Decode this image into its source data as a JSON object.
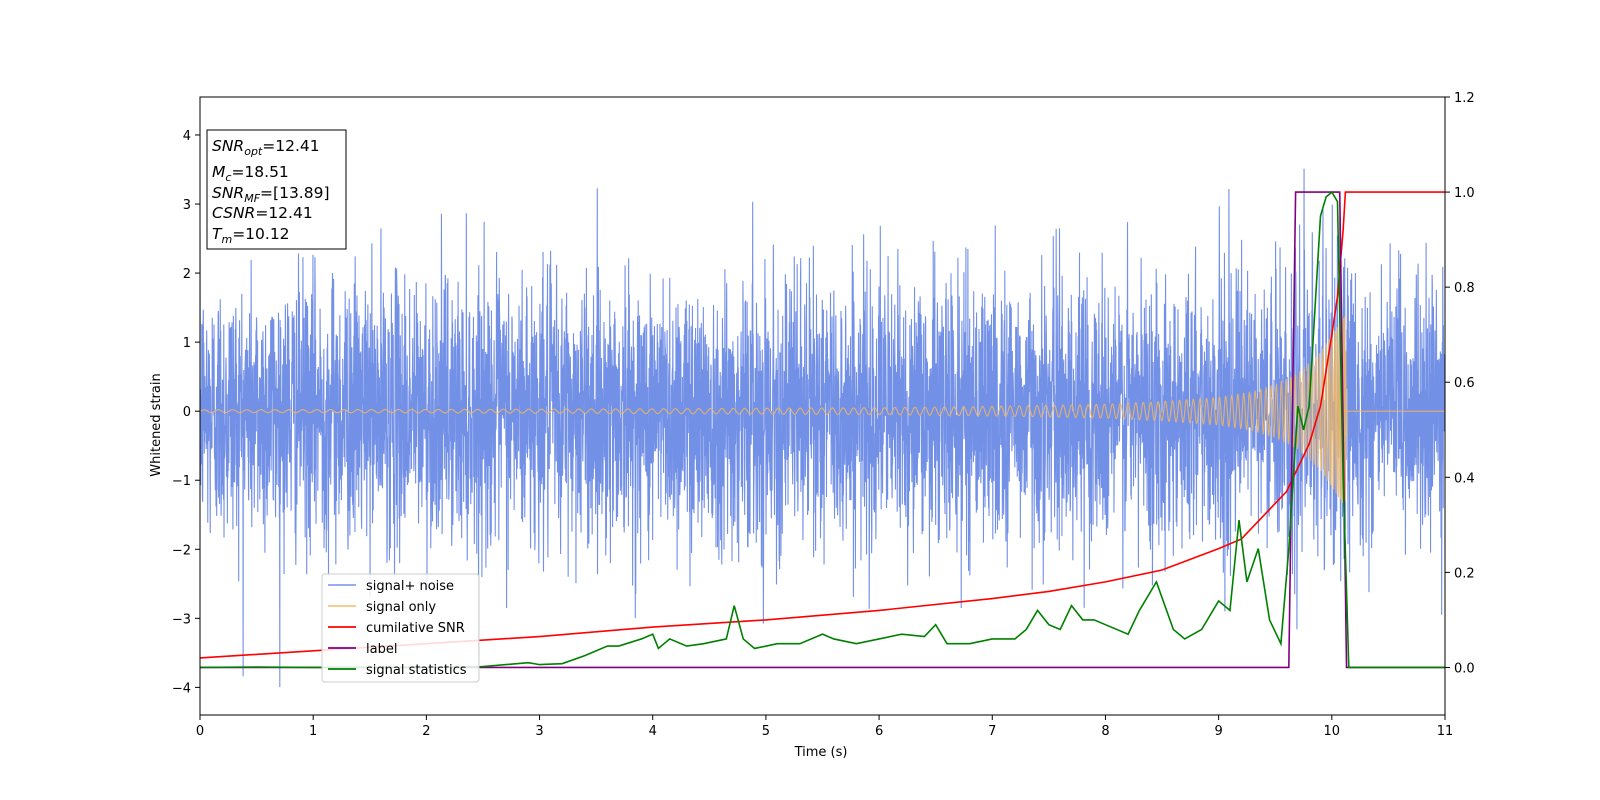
{
  "chart_data": {
    "type": "line",
    "xlabel": "Time (s)",
    "ylabel": "Whitened strain",
    "xlim": [
      0,
      11
    ],
    "ylim_left": [
      -4.4,
      4.55
    ],
    "ylim_right": [
      -0.1,
      1.2
    ],
    "x_ticks": [
      0,
      1,
      2,
      3,
      4,
      5,
      6,
      7,
      8,
      9,
      10,
      11
    ],
    "y_ticks_left": [
      -4,
      -3,
      -2,
      -1,
      0,
      1,
      2,
      3,
      4
    ],
    "y_ticks_right": [
      0.0,
      0.2,
      0.4,
      0.6,
      0.8,
      1.0,
      1.2
    ],
    "grid": false,
    "legend_position": "lower-left",
    "annotation": {
      "lines": [
        {
          "main": "SNR",
          "sub": "opt",
          "rest": "=12.41"
        },
        {
          "main": "M",
          "sub": "c",
          "rest": "=18.51"
        },
        {
          "main": "SNR",
          "sub": "MF",
          "rest": "=[13.89]"
        },
        {
          "main": "CSNR",
          "sub": "",
          "rest": "=12.41"
        },
        {
          "main": "T",
          "sub": "m",
          "rest": "=10.12"
        }
      ]
    },
    "series": [
      {
        "name": "signal+ noise",
        "axis": "left",
        "color": "#6b8ae6",
        "noise_std": 0.95,
        "x_range": [
          0,
          11
        ]
      },
      {
        "name": "signal only",
        "axis": "left",
        "color": "#f5b75c",
        "envelope": {
          "x": [
            0,
            2,
            4,
            6,
            7,
            8,
            8.5,
            9,
            9.3,
            9.5,
            9.7,
            9.9,
            10.0,
            10.1,
            10.12,
            10.13,
            11
          ],
          "amp": [
            0.02,
            0.025,
            0.035,
            0.05,
            0.07,
            0.1,
            0.14,
            0.2,
            0.28,
            0.38,
            0.55,
            0.85,
            1.1,
            1.35,
            1.4,
            0,
            0
          ]
        }
      },
      {
        "name": "cumilative SNR",
        "axis": "right",
        "color": "#ff0000",
        "x": [
          0,
          1,
          2,
          3,
          4,
          5,
          6,
          7,
          7.5,
          8,
          8.5,
          9,
          9.2,
          9.4,
          9.6,
          9.8,
          9.9,
          10.0,
          10.05,
          10.1,
          10.12,
          10.13,
          11
        ],
        "y": [
          0.02,
          0.035,
          0.05,
          0.065,
          0.085,
          0.1,
          0.12,
          0.145,
          0.16,
          0.18,
          0.205,
          0.25,
          0.27,
          0.32,
          0.37,
          0.47,
          0.55,
          0.7,
          0.78,
          0.92,
          1.0,
          1.0,
          1.0
        ]
      },
      {
        "name": "label",
        "axis": "right",
        "color": "#800080",
        "x": [
          0,
          9.62,
          9.68,
          10.07,
          10.13,
          11
        ],
        "y": [
          0,
          0,
          1.0,
          1.0,
          0,
          0
        ]
      },
      {
        "name": "signal statistics",
        "axis": "right",
        "color": "#008000",
        "x": [
          0,
          0.5,
          1,
          2,
          2.5,
          2.9,
          3.0,
          3.2,
          3.4,
          3.6,
          3.7,
          3.9,
          4.0,
          4.05,
          4.15,
          4.3,
          4.45,
          4.65,
          4.72,
          4.8,
          4.9,
          5.1,
          5.3,
          5.5,
          5.6,
          5.8,
          6.0,
          6.2,
          6.4,
          6.5,
          6.6,
          6.8,
          7.0,
          7.2,
          7.3,
          7.4,
          7.5,
          7.6,
          7.7,
          7.8,
          7.9,
          8.0,
          8.1,
          8.2,
          8.3,
          8.45,
          8.6,
          8.7,
          8.85,
          9.0,
          9.1,
          9.18,
          9.25,
          9.35,
          9.45,
          9.55,
          9.62,
          9.7,
          9.75,
          9.8,
          9.85,
          9.9,
          9.95,
          10.0,
          10.05,
          10.1,
          10.15,
          10.2,
          11
        ],
        "y": [
          0.0,
          0.001,
          0.0,
          0.0,
          0.002,
          0.01,
          0.006,
          0.008,
          0.025,
          0.045,
          0.045,
          0.06,
          0.07,
          0.04,
          0.06,
          0.045,
          0.05,
          0.06,
          0.13,
          0.06,
          0.04,
          0.05,
          0.05,
          0.07,
          0.06,
          0.05,
          0.06,
          0.07,
          0.065,
          0.09,
          0.05,
          0.05,
          0.06,
          0.06,
          0.08,
          0.12,
          0.09,
          0.08,
          0.13,
          0.1,
          0.1,
          0.09,
          0.08,
          0.07,
          0.12,
          0.18,
          0.08,
          0.06,
          0.08,
          0.14,
          0.12,
          0.31,
          0.18,
          0.25,
          0.1,
          0.05,
          0.25,
          0.55,
          0.5,
          0.55,
          0.75,
          0.95,
          0.99,
          1.0,
          0.98,
          0.4,
          0.0,
          0.0,
          0.0
        ]
      }
    ]
  }
}
